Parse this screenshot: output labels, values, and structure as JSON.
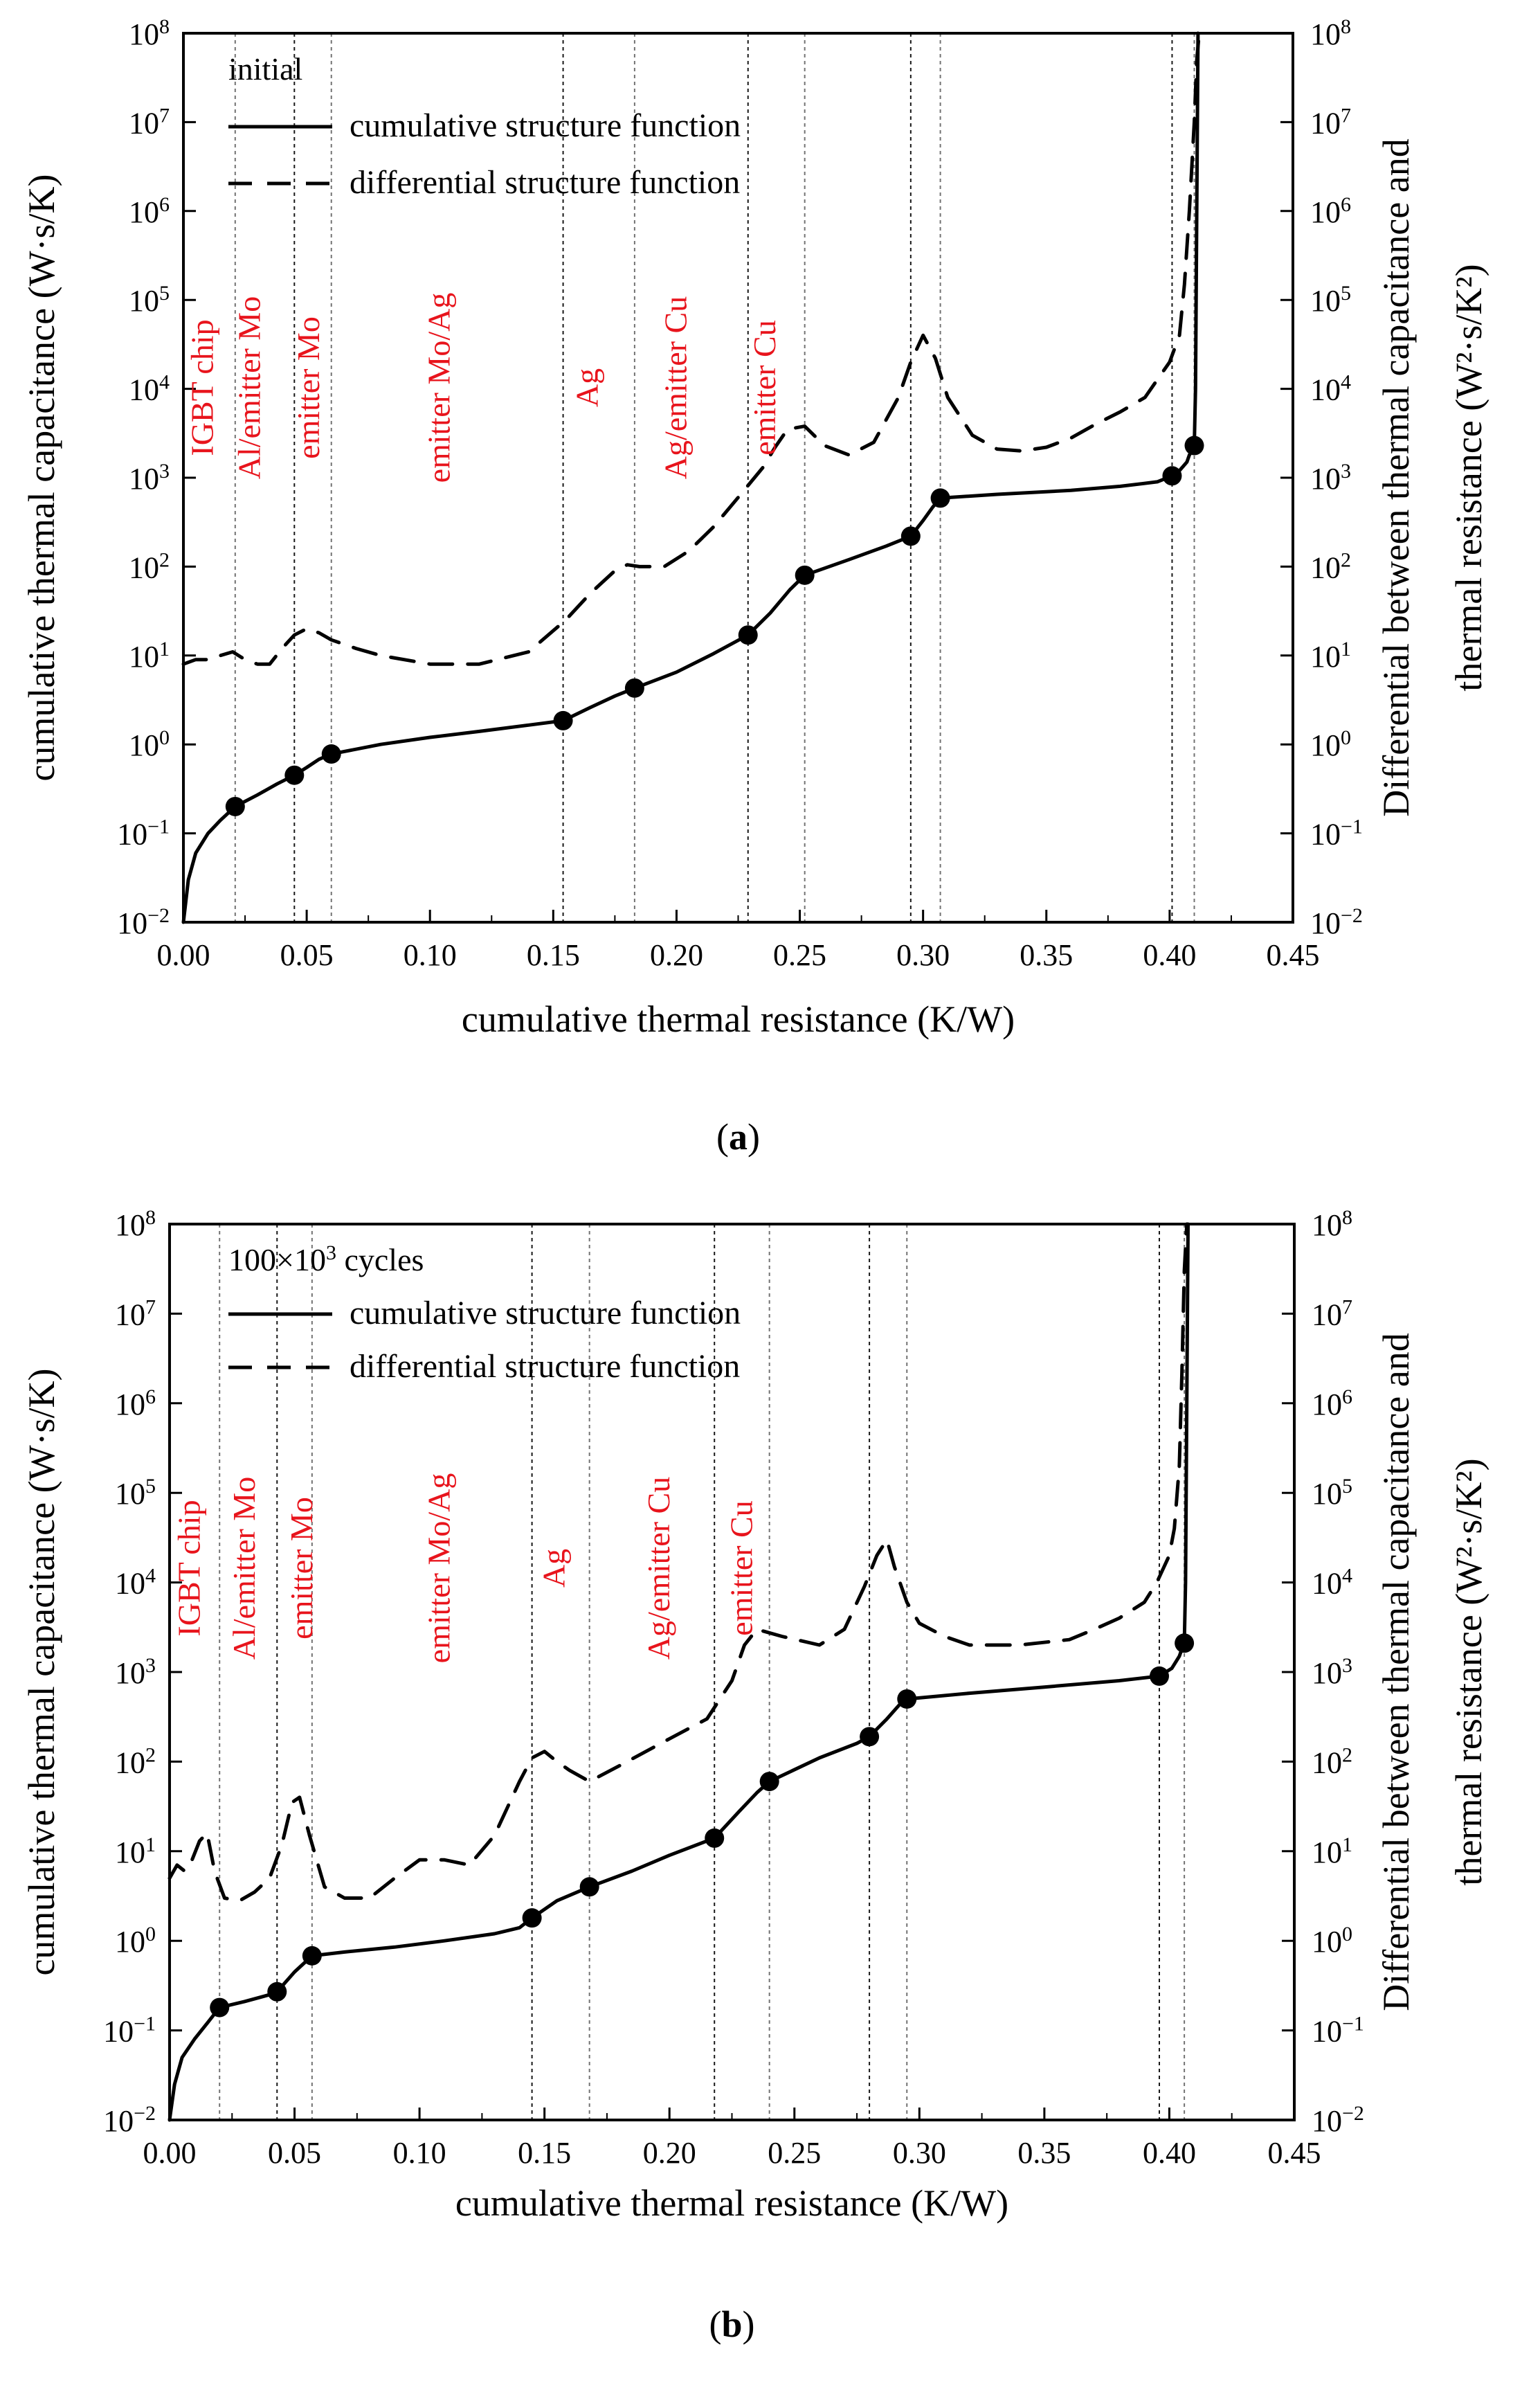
{
  "colors": {
    "annotation": "#e8141c",
    "curve": "#000000",
    "axis": "#000000",
    "grid": "#000000"
  },
  "chart_data": [
    {
      "type": "line",
      "panel_label": "a",
      "legend_title": "initial",
      "legend": [
        "cumulative structure function",
        "differential structure function"
      ],
      "xlabel": "cumulative thermal resistance (K/W)",
      "ylabel": "cumulative thermal capacitance (W·s/K)",
      "y2label_line1": "Differential between thermal capacitance and",
      "y2label_line2": "thermal resistance (W²·s/K²)",
      "xlim": [
        0,
        0.45
      ],
      "ylim": [
        0.01,
        100000000
      ],
      "yscale": "log",
      "xticks": [
        "0.00",
        "0.05",
        "0.10",
        "0.15",
        "0.20",
        "0.25",
        "0.30",
        "0.35",
        "0.40",
        "0.45"
      ],
      "yticks": [
        {
          "base": "10",
          "exp": "−2"
        },
        {
          "base": "10",
          "exp": "−1"
        },
        {
          "base": "10",
          "exp": "0"
        },
        {
          "base": "10",
          "exp": "1"
        },
        {
          "base": "10",
          "exp": "2"
        },
        {
          "base": "10",
          "exp": "3"
        },
        {
          "base": "10",
          "exp": "4"
        },
        {
          "base": "10",
          "exp": "5"
        },
        {
          "base": "10",
          "exp": "6"
        },
        {
          "base": "10",
          "exp": "7"
        },
        {
          "base": "10",
          "exp": "8"
        }
      ],
      "vlines": [
        0.021,
        0.045,
        0.06,
        0.154,
        0.183,
        0.229,
        0.252,
        0.295,
        0.307,
        0.401,
        0.41
      ],
      "annotations": [
        {
          "text": "IGBT chip",
          "x": 0.012,
          "y": 500
        },
        {
          "text": "Al/emitter Mo",
          "x": 0.031,
          "y": 500
        },
        {
          "text": "emitter Mo",
          "x": 0.055,
          "y": 500
        },
        {
          "text": "emitter Mo/Ag",
          "x": 0.108,
          "y": 500
        },
        {
          "text": "Ag",
          "x": 0.168,
          "y": 500
        },
        {
          "text": "Ag/emitter Cu",
          "x": 0.204,
          "y": 500
        },
        {
          "text": "emitter Cu",
          "x": 0.24,
          "y": 500
        }
      ],
      "series": [
        {
          "name": "cumulative structure function",
          "style": "solid",
          "x": [
            0.0,
            0.002,
            0.005,
            0.01,
            0.015,
            0.021,
            0.03,
            0.038,
            0.045,
            0.05,
            0.055,
            0.06,
            0.08,
            0.1,
            0.12,
            0.14,
            0.154,
            0.165,
            0.175,
            0.183,
            0.2,
            0.215,
            0.229,
            0.238,
            0.246,
            0.252,
            0.27,
            0.285,
            0.295,
            0.3,
            0.304,
            0.307,
            0.33,
            0.36,
            0.38,
            0.395,
            0.401,
            0.404,
            0.407,
            0.408,
            0.409,
            0.41,
            0.4105,
            0.411,
            0.4115
          ],
          "y": [
            0.01,
            0.03,
            0.06,
            0.1,
            0.14,
            0.2,
            0.27,
            0.36,
            0.45,
            0.55,
            0.68,
            0.78,
            1.0,
            1.2,
            1.4,
            1.65,
            1.85,
            2.6,
            3.5,
            4.3,
            6.5,
            10.5,
            17,
            30,
            55,
            80,
            120,
            170,
            220,
            330,
            470,
            590,
            650,
            720,
            800,
            900,
            1050,
            1200,
            1500,
            1800,
            2000,
            2300,
            10000,
            1000000,
            100000000
          ]
        },
        {
          "name": "differential structure function",
          "style": "dashed",
          "x": [
            0.0,
            0.005,
            0.01,
            0.015,
            0.02,
            0.025,
            0.03,
            0.035,
            0.04,
            0.045,
            0.05,
            0.055,
            0.06,
            0.07,
            0.08,
            0.1,
            0.12,
            0.14,
            0.155,
            0.165,
            0.175,
            0.18,
            0.185,
            0.195,
            0.205,
            0.215,
            0.225,
            0.235,
            0.24,
            0.245,
            0.252,
            0.26,
            0.27,
            0.28,
            0.29,
            0.295,
            0.3,
            0.305,
            0.31,
            0.32,
            0.33,
            0.34,
            0.35,
            0.36,
            0.37,
            0.38,
            0.39,
            0.4,
            0.404,
            0.406,
            0.408,
            0.41,
            0.411,
            0.412
          ],
          "y": [
            8,
            9,
            9,
            10,
            11,
            9,
            8,
            8,
            12,
            17,
            20,
            18,
            15,
            12,
            10,
            8,
            8,
            11,
            25,
            50,
            90,
            105,
            100,
            100,
            150,
            280,
            600,
            1300,
            2200,
            3500,
            3800,
            2300,
            1800,
            2500,
            8000,
            20000,
            40000,
            22000,
            8000,
            3000,
            2100,
            2000,
            2200,
            2800,
            4000,
            5500,
            8000,
            20000,
            40000,
            150000,
            1000000,
            10000000,
            50000000,
            100000000
          ]
        }
      ],
      "markers": [
        {
          "x": 0.021,
          "y": 0.2
        },
        {
          "x": 0.045,
          "y": 0.45
        },
        {
          "x": 0.06,
          "y": 0.78
        },
        {
          "x": 0.154,
          "y": 1.85
        },
        {
          "x": 0.183,
          "y": 4.3
        },
        {
          "x": 0.229,
          "y": 17
        },
        {
          "x": 0.252,
          "y": 80
        },
        {
          "x": 0.295,
          "y": 220
        },
        {
          "x": 0.307,
          "y": 590
        },
        {
          "x": 0.401,
          "y": 1050
        },
        {
          "x": 0.41,
          "y": 2300
        }
      ]
    },
    {
      "type": "line",
      "panel_label": "b",
      "legend_title_base": "100×10",
      "legend_title_sup": "3",
      "legend_title_rest": " cycles",
      "legend": [
        "cumulative structure function",
        "differential structure function"
      ],
      "xlabel": "cumulative thermal resistance (K/W)",
      "ylabel": "cumulative thermal capacitance (W·s/K)",
      "y2label_line1": "Differential between thermal capacitance and",
      "y2label_line2": "thermal resistance (W²·s/K²)",
      "xlim": [
        0,
        0.45
      ],
      "ylim": [
        0.01,
        100000000
      ],
      "yscale": "log",
      "xticks": [
        "0.00",
        "0.05",
        "0.10",
        "0.15",
        "0.20",
        "0.25",
        "0.30",
        "0.35",
        "0.40",
        "0.45"
      ],
      "yticks": [
        {
          "base": "10",
          "exp": "−2"
        },
        {
          "base": "10",
          "exp": "−1"
        },
        {
          "base": "10",
          "exp": "0"
        },
        {
          "base": "10",
          "exp": "1"
        },
        {
          "base": "10",
          "exp": "2"
        },
        {
          "base": "10",
          "exp": "3"
        },
        {
          "base": "10",
          "exp": "4"
        },
        {
          "base": "10",
          "exp": "5"
        },
        {
          "base": "10",
          "exp": "6"
        },
        {
          "base": "10",
          "exp": "7"
        },
        {
          "base": "10",
          "exp": "8"
        }
      ],
      "vlines": [
        0.02,
        0.043,
        0.057,
        0.145,
        0.168,
        0.218,
        0.24,
        0.28,
        0.295,
        0.396,
        0.406
      ],
      "annotations": [
        {
          "text": "IGBT chip",
          "x": 0.012,
          "y": 500
        },
        {
          "text": "Al/emitter Mo",
          "x": 0.034,
          "y": 500
        },
        {
          "text": "emitter Mo",
          "x": 0.057,
          "y": 500
        },
        {
          "text": "emitter Mo/Ag",
          "x": 0.112,
          "y": 500
        },
        {
          "text": "Ag",
          "x": 0.158,
          "y": 500
        },
        {
          "text": "Ag/emitter Cu",
          "x": 0.2,
          "y": 500
        },
        {
          "text": "emitter Cu",
          "x": 0.233,
          "y": 500
        }
      ],
      "series": [
        {
          "name": "cumulative structure function",
          "style": "solid",
          "x": [
            0.0,
            0.002,
            0.005,
            0.01,
            0.015,
            0.02,
            0.03,
            0.04,
            0.043,
            0.05,
            0.057,
            0.07,
            0.09,
            0.11,
            0.13,
            0.14,
            0.145,
            0.155,
            0.168,
            0.185,
            0.2,
            0.218,
            0.228,
            0.235,
            0.24,
            0.26,
            0.275,
            0.28,
            0.287,
            0.292,
            0.295,
            0.32,
            0.35,
            0.38,
            0.396,
            0.401,
            0.404,
            0.405,
            0.406,
            0.4065,
            0.407,
            0.4075
          ],
          "y": [
            0.01,
            0.025,
            0.05,
            0.08,
            0.12,
            0.18,
            0.21,
            0.25,
            0.27,
            0.45,
            0.68,
            0.75,
            0.85,
            1.0,
            1.2,
            1.4,
            1.8,
            2.8,
            4.0,
            6.0,
            9.0,
            14,
            28,
            45,
            60,
            110,
            160,
            190,
            300,
            430,
            500,
            580,
            680,
            800,
            900,
            1100,
            1500,
            1800,
            2100,
            10000,
            1000000,
            100000000
          ]
        },
        {
          "name": "differential structure function",
          "style": "dashed",
          "x": [
            0.0,
            0.003,
            0.006,
            0.009,
            0.012,
            0.015,
            0.018,
            0.022,
            0.028,
            0.034,
            0.04,
            0.045,
            0.049,
            0.052,
            0.056,
            0.062,
            0.07,
            0.08,
            0.09,
            0.1,
            0.11,
            0.12,
            0.13,
            0.14,
            0.145,
            0.15,
            0.155,
            0.16,
            0.168,
            0.18,
            0.2,
            0.215,
            0.225,
            0.23,
            0.235,
            0.245,
            0.26,
            0.27,
            0.278,
            0.283,
            0.287,
            0.29,
            0.295,
            0.3,
            0.31,
            0.32,
            0.34,
            0.36,
            0.37,
            0.38,
            0.39,
            0.395,
            0.4,
            0.402,
            0.404,
            0.405,
            0.406,
            0.407
          ],
          "y": [
            5,
            7,
            6,
            8,
            13,
            16,
            6,
            3,
            2.8,
            3.5,
            5,
            12,
            35,
            40,
            15,
            4,
            3,
            3,
            5,
            8,
            8,
            7,
            15,
            60,
            110,
            130,
            100,
            80,
            60,
            90,
            180,
            300,
            800,
            2000,
            3000,
            2500,
            2000,
            3000,
            9000,
            20000,
            30000,
            15000,
            6000,
            3500,
            2500,
            2000,
            2000,
            2300,
            3000,
            4000,
            6000,
            10000,
            20000,
            40000,
            200000,
            2000000,
            30000000,
            100000000
          ]
        }
      ],
      "markers": [
        {
          "x": 0.02,
          "y": 0.18
        },
        {
          "x": 0.043,
          "y": 0.27
        },
        {
          "x": 0.057,
          "y": 0.68
        },
        {
          "x": 0.145,
          "y": 1.8
        },
        {
          "x": 0.168,
          "y": 4.0
        },
        {
          "x": 0.218,
          "y": 14
        },
        {
          "x": 0.24,
          "y": 60
        },
        {
          "x": 0.28,
          "y": 190
        },
        {
          "x": 0.295,
          "y": 500
        },
        {
          "x": 0.396,
          "y": 900
        },
        {
          "x": 0.406,
          "y": 2100
        }
      ]
    }
  ]
}
